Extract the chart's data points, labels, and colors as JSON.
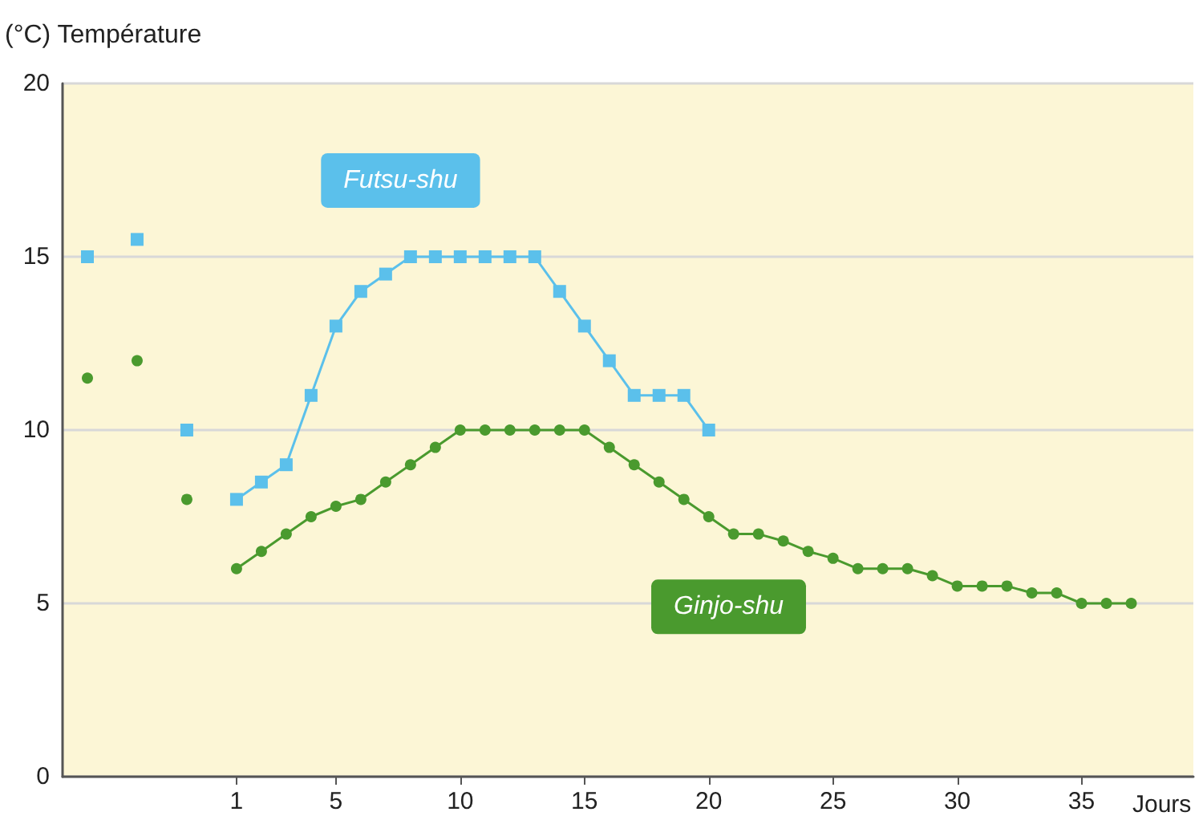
{
  "chart_data": {
    "type": "line",
    "xlabel": "Jours",
    "ylabel": "(°C) Température",
    "xlim": [
      -6,
      39.5
    ],
    "xticks": [
      1,
      5,
      10,
      15,
      20,
      25,
      30,
      35
    ],
    "ylim": [
      0,
      20
    ],
    "yticks": [
      0,
      5,
      10,
      15,
      20
    ],
    "grid": "y",
    "legend": false,
    "series": [
      {
        "name": "Futsu-shu",
        "color": "#5bc0eb",
        "marker": "square",
        "x": [
          -5,
          -4,
          -3,
          -2,
          -1,
          0,
          1,
          2,
          3,
          4,
          5,
          6,
          7,
          8,
          9,
          10,
          11,
          12,
          13,
          14,
          15,
          16,
          17,
          18,
          19,
          20
        ],
        "values": [
          15,
          null,
          15.5,
          null,
          10,
          null,
          8,
          8.5,
          9,
          11,
          13,
          14,
          14.5,
          15,
          15,
          15,
          15,
          15,
          15,
          14,
          13,
          12,
          11,
          11,
          11,
          10
        ]
      },
      {
        "name": "Ginjo-shu",
        "color": "#4a9a2e",
        "marker": "circle",
        "x": [
          -5,
          -4,
          -3,
          -2,
          -1,
          0,
          1,
          2,
          3,
          4,
          5,
          6,
          7,
          8,
          9,
          10,
          11,
          12,
          13,
          14,
          15,
          16,
          17,
          18,
          19,
          20,
          21,
          22,
          23,
          24,
          25,
          26,
          27,
          28,
          29,
          30,
          31,
          32,
          33,
          34,
          35,
          36,
          37
        ],
        "values": [
          11.5,
          null,
          12,
          null,
          8,
          null,
          6,
          6.5,
          7,
          7.5,
          7.8,
          8,
          8.5,
          9,
          9.5,
          10,
          10,
          10,
          10,
          10,
          10,
          9.5,
          9,
          8.5,
          8,
          7.5,
          7,
          7,
          6.8,
          6.5,
          6.3,
          6,
          6,
          6,
          5.8,
          5.5,
          5.5,
          5.5,
          5.3,
          5.3,
          5,
          5,
          5
        ]
      }
    ]
  }
}
